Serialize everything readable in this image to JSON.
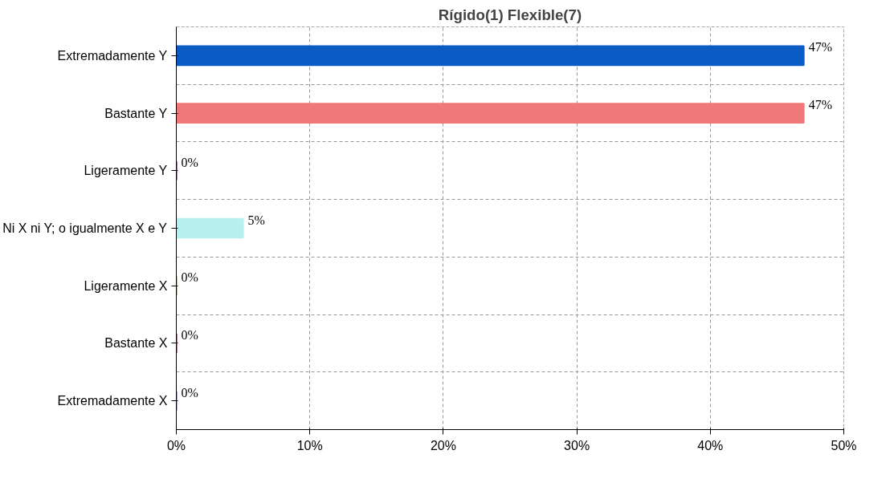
{
  "chart_data": {
    "type": "bar",
    "orientation": "horizontal",
    "title": "Rígido(1) Flexible(7)",
    "categories": [
      "Extremadamente Y",
      "Bastante Y",
      "Ligeramente Y",
      "Ni X ni Y; o igualmente X e Y",
      "Ligeramente X",
      "Bastante X",
      "Extremadamente X"
    ],
    "values": [
      47,
      47,
      0,
      5,
      0,
      0,
      0
    ],
    "colors": [
      "#0a5cc4",
      "#f07878",
      "#400040",
      "#b8f0f0",
      "#808060",
      "#600030",
      "#5050a0"
    ],
    "value_labels": [
      "47%",
      "47%",
      "0%",
      "5%",
      "0%",
      "0%",
      "0%"
    ],
    "xlim": [
      0,
      50
    ],
    "xticks": [
      {
        "value": 0,
        "label": "0%"
      },
      {
        "value": 10,
        "label": "10%"
      },
      {
        "value": 20,
        "label": "20%"
      },
      {
        "value": 30,
        "label": "30%"
      },
      {
        "value": 40,
        "label": "40%"
      },
      {
        "value": 50,
        "label": "50%"
      }
    ],
    "grid": true
  }
}
